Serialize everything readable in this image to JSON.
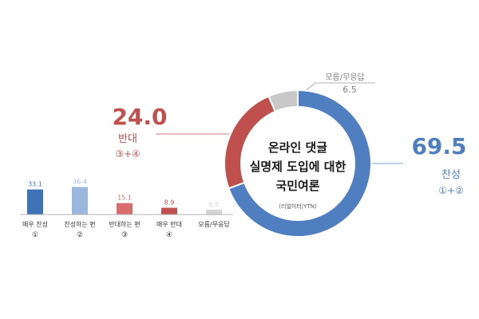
{
  "chart_data": [
    {
      "type": "pie",
      "title": "온라인 댓글\n실명제 도입에 대한\n국민여론",
      "source_note": "(리얼미터|YTN)",
      "slices": [
        {
          "key": "agree",
          "label": "찬성",
          "sub": "①+②",
          "value": 69.5,
          "color": "#4f7fc0"
        },
        {
          "key": "disagree",
          "label": "반대",
          "sub": "③+④",
          "value": 24.0,
          "color": "#c0504d"
        },
        {
          "key": "unknown",
          "label": "모름/무응답",
          "value": 6.5,
          "color": "#c8c8c8"
        }
      ]
    },
    {
      "type": "bar",
      "categories": [
        "매우 찬성",
        "찬성하는 편",
        "반대하는 편",
        "매우 반대",
        "모름/무응답"
      ],
      "sublabels": [
        "①",
        "②",
        "③",
        "④",
        ""
      ],
      "values": [
        33.1,
        36.4,
        15.1,
        8.9,
        6.5
      ],
      "value_labels": [
        "33.1",
        "36.4",
        "15.1",
        "8.9",
        "6.5"
      ],
      "colors": [
        "#3f73b8",
        "#9ab7de",
        "#d86b6b",
        "#c0504d",
        "#d4d4d4"
      ],
      "ylim": [
        0,
        40
      ]
    }
  ]
}
